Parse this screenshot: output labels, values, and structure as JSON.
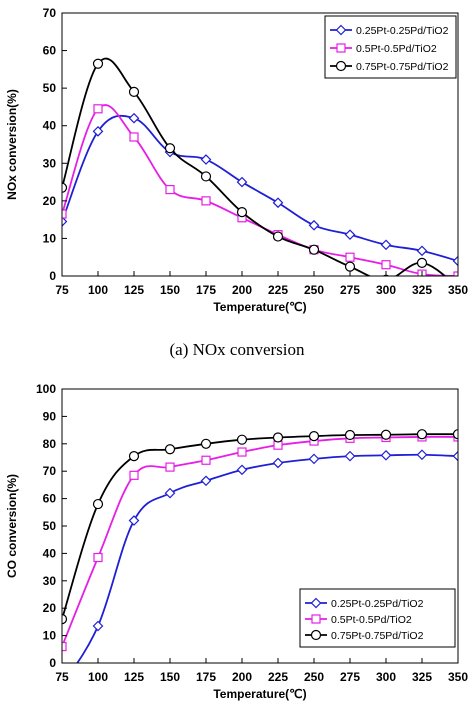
{
  "chart_data": [
    {
      "type": "line",
      "title": "",
      "caption": "(a)  NOx  conversion",
      "xlabel": "Temperature(℃)",
      "ylabel": "NOx conversion(%)",
      "xlim": [
        75,
        350
      ],
      "ylim": [
        0,
        70
      ],
      "x_ticks": [
        75,
        100,
        125,
        150,
        175,
        200,
        225,
        250,
        275,
        300,
        325,
        350
      ],
      "y_ticks": [
        0,
        10,
        20,
        30,
        40,
        50,
        60,
        70
      ],
      "grid": false,
      "legend": "top-right",
      "x": [
        75,
        100,
        125,
        150,
        175,
        200,
        225,
        250,
        275,
        300,
        325,
        350
      ],
      "series": [
        {
          "name": "0.25Pt-0.25Pd/TiO2",
          "color": "#1f1fd6",
          "marker": "diamond",
          "values": [
            14.5,
            38.5,
            42,
            33,
            31,
            25,
            19.5,
            13.5,
            11,
            8.3,
            6.7,
            4
          ]
        },
        {
          "name": "0.5Pt-0.5Pd/TiO2",
          "color": "#e61ee6",
          "marker": "square",
          "values": [
            16.5,
            44.5,
            37,
            23,
            20,
            15.5,
            11,
            7,
            5,
            3,
            0.5,
            0
          ]
        },
        {
          "name": "0.75Pt-0.75Pd/TiO2",
          "color": "#000000",
          "marker": "circle",
          "values": [
            23.5,
            56.5,
            49,
            34,
            26.5,
            17,
            10.5,
            7,
            2.5,
            -1,
            3.5,
            -3
          ]
        }
      ]
    },
    {
      "type": "line",
      "title": "",
      "caption": "",
      "xlabel": "Temperature(℃)",
      "ylabel": "CO conversion(%)",
      "xlim": [
        75,
        350
      ],
      "ylim": [
        0,
        100
      ],
      "x_ticks": [
        75,
        100,
        125,
        150,
        175,
        200,
        225,
        250,
        275,
        300,
        325,
        350
      ],
      "y_ticks": [
        0,
        10,
        20,
        30,
        40,
        50,
        60,
        70,
        80,
        90,
        100
      ],
      "grid": false,
      "legend": "bottom-right",
      "x": [
        75,
        100,
        125,
        150,
        175,
        200,
        225,
        250,
        275,
        300,
        325,
        350
      ],
      "series": [
        {
          "name": "0.25Pt-0.25Pd/TiO2",
          "color": "#1f1fd6",
          "marker": "diamond",
          "values": [
            -8,
            13.5,
            52,
            62,
            66.5,
            70.5,
            73,
            74.5,
            75.5,
            75.8,
            76,
            75.5
          ]
        },
        {
          "name": "0.5Pt-0.5Pd/TiO2",
          "color": "#e61ee6",
          "marker": "square",
          "values": [
            6,
            38.5,
            68.5,
            71.5,
            74,
            77,
            79.5,
            81,
            82,
            82.3,
            82.5,
            82.5
          ]
        },
        {
          "name": "0.75Pt-0.75Pd/TiO2",
          "color": "#000000",
          "marker": "circle",
          "values": [
            16,
            58,
            75.5,
            78,
            80,
            81.5,
            82.3,
            82.8,
            83.2,
            83.3,
            83.5,
            83.5
          ]
        }
      ]
    }
  ]
}
